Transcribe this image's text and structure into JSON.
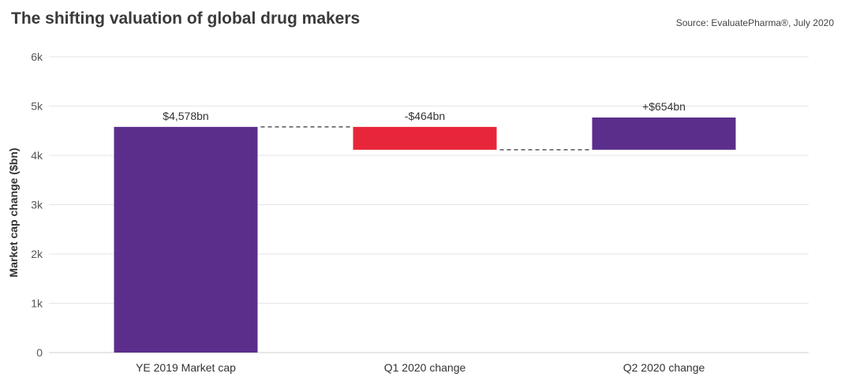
{
  "header": {
    "title": "The shifting valuation of global drug makers",
    "source": "Source: EvaluatePharma®, July 2020"
  },
  "colors": {
    "base_bar": "#5b2e8c",
    "decrease_bar": "#e8263a",
    "increase_bar": "#5b2e8c",
    "grid": "#e6e6e6",
    "connector": "#333333"
  },
  "chart_data": {
    "type": "bar",
    "subtype": "waterfall",
    "title": "The shifting valuation of global drug makers",
    "xlabel": "",
    "ylabel": "Market cap change ($bn)",
    "ylim": [
      0,
      6000
    ],
    "yticks": [
      0,
      1000,
      2000,
      3000,
      4000,
      5000,
      6000
    ],
    "ytick_labels": [
      "0",
      "1k",
      "2k",
      "3k",
      "4k",
      "5k",
      "6k"
    ],
    "categories": [
      "YE 2019 Market cap",
      "Q1 2020 change",
      "Q2 2020 change"
    ],
    "values": [
      4578,
      -464,
      654
    ],
    "value_labels": [
      "$4,578bn",
      "-$464bn",
      "+$654bn"
    ],
    "bar_kind": [
      "total",
      "decrease",
      "increase"
    ],
    "grid": true,
    "legend": "none"
  }
}
